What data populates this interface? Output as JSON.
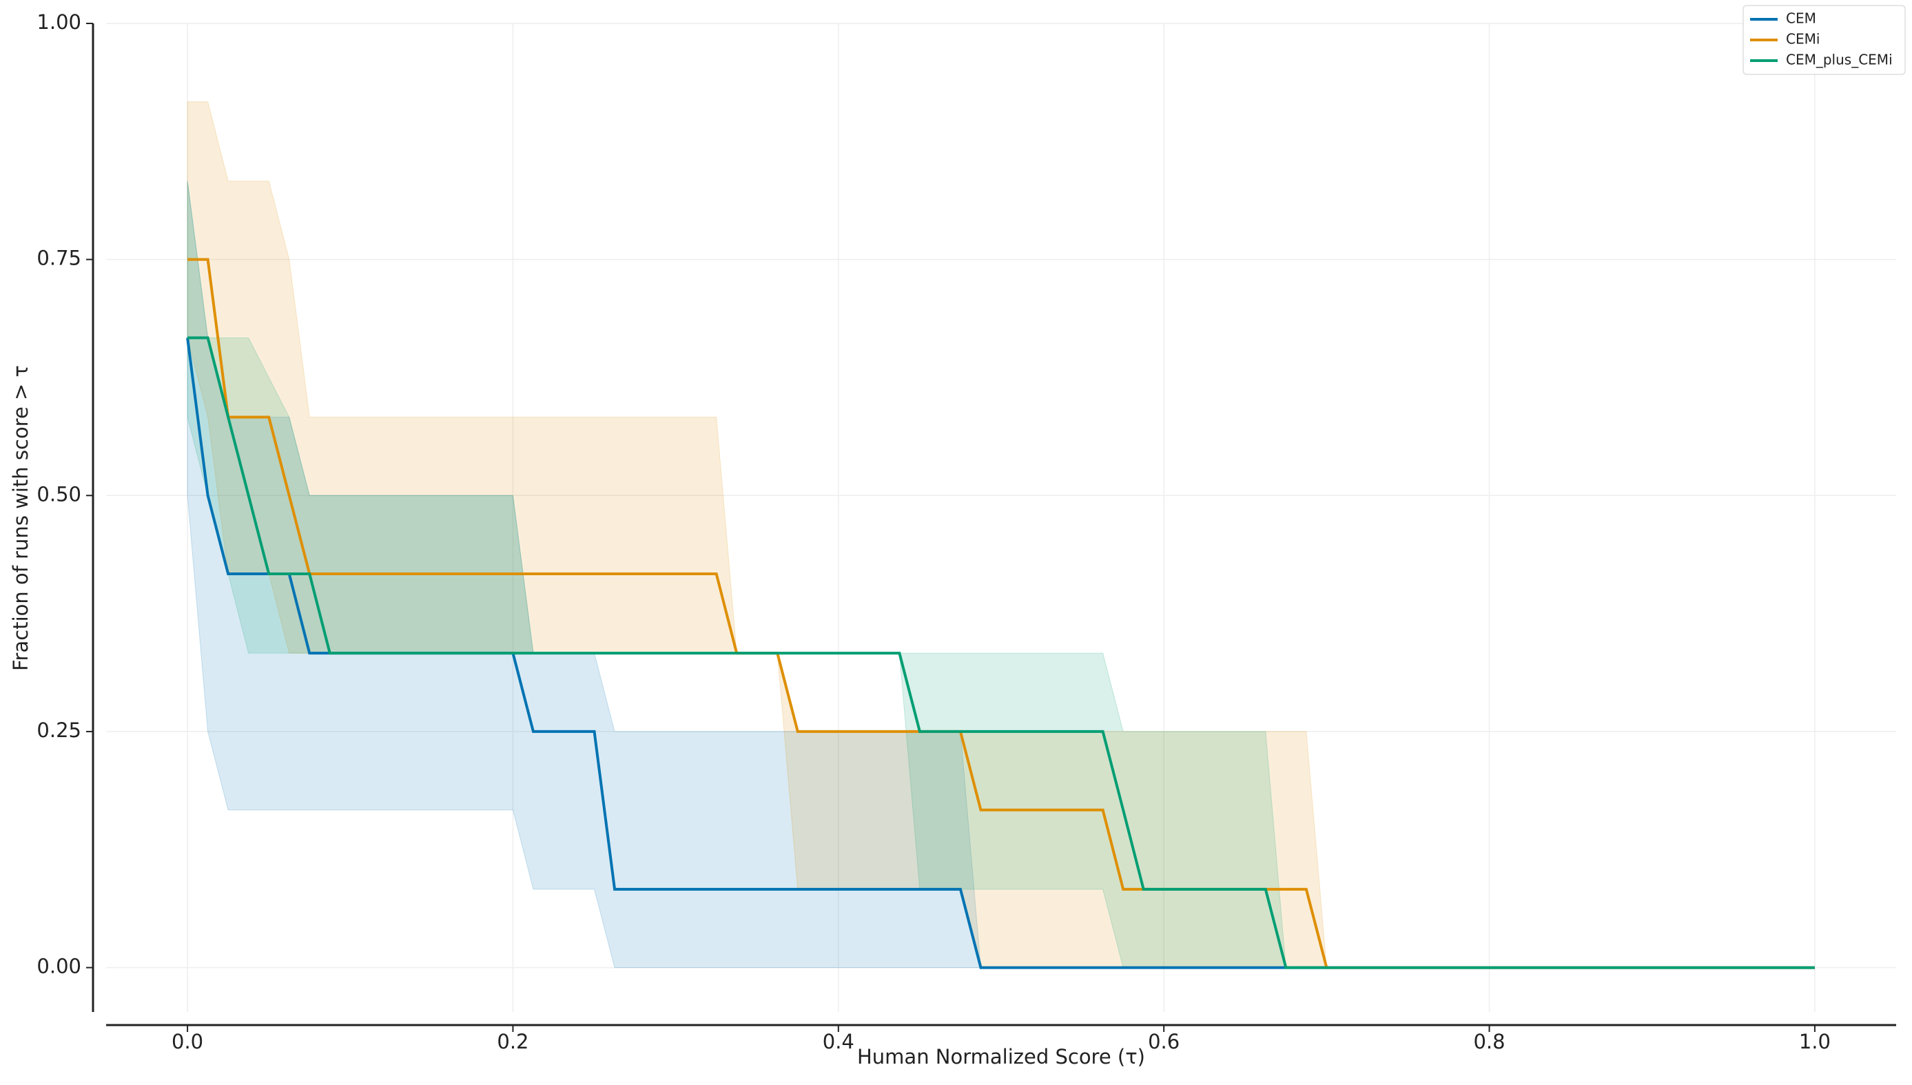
{
  "chart_data": {
    "type": "line",
    "xlabel": "Human Normalized Score (τ)",
    "ylabel": "Fraction of runs with score > τ",
    "x": [
      0,
      0.0125,
      0.025,
      0.0375,
      0.05,
      0.0625,
      0.075,
      0.0875,
      0.2,
      0.2125,
      0.25,
      0.2625,
      0.325,
      0.3375,
      0.3625,
      0.375,
      0.4375,
      0.45,
      0.475,
      0.4875,
      0.5625,
      0.575,
      0.5875,
      0.6625,
      0.675,
      0.6875,
      0.7,
      1
    ],
    "series": [
      {
        "name": "CEM",
        "color": "#0173b2",
        "values": [
          0.667,
          0.5,
          0.417,
          0.417,
          0.417,
          0.417,
          0.333,
          0.333,
          0.333,
          0.25,
          0.25,
          0.083,
          0.083,
          0.083,
          0.083,
          0.083,
          0.083,
          0.083,
          0.083,
          0,
          0,
          0,
          0,
          0,
          0,
          0,
          0,
          0
        ],
        "lower": [
          0.5,
          0.25,
          0.167,
          0.167,
          0.167,
          0.167,
          0.167,
          0.167,
          0.167,
          0.083,
          0.083,
          0,
          0,
          0,
          0,
          0,
          0,
          0,
          0,
          0,
          0,
          0,
          0,
          0,
          0,
          0,
          0,
          0
        ],
        "upper": [
          0.833,
          0.667,
          0.583,
          0.583,
          0.583,
          0.583,
          0.5,
          0.5,
          0.5,
          0.333,
          0.333,
          0.25,
          0.25,
          0.25,
          0.25,
          0.25,
          0.25,
          0.25,
          0.25,
          0,
          0,
          0,
          0,
          0,
          0,
          0,
          0,
          0
        ]
      },
      {
        "name": "CEMi",
        "color": "#de8f05",
        "values": [
          0.75,
          0.75,
          0.583,
          0.583,
          0.583,
          0.5,
          0.417,
          0.417,
          0.417,
          0.417,
          0.417,
          0.417,
          0.417,
          0.333,
          0.333,
          0.25,
          0.25,
          0.25,
          0.25,
          0.167,
          0.167,
          0.083,
          0.083,
          0.083,
          0.083,
          0.083,
          0,
          0
        ],
        "lower": [
          0.667,
          0.583,
          0.417,
          0.417,
          0.417,
          0.333,
          0.333,
          0.333,
          0.333,
          0.333,
          0.333,
          0.333,
          0.333,
          0.333,
          0.333,
          0.083,
          0.083,
          0.083,
          0.083,
          0,
          0,
          0,
          0,
          0,
          0,
          0,
          0,
          0
        ],
        "upper": [
          0.917,
          0.917,
          0.833,
          0.833,
          0.833,
          0.75,
          0.583,
          0.583,
          0.583,
          0.583,
          0.583,
          0.583,
          0.583,
          0.333,
          0.333,
          0.25,
          0.25,
          0.25,
          0.25,
          0.25,
          0.25,
          0.25,
          0.25,
          0.25,
          0.25,
          0.25,
          0,
          0
        ]
      },
      {
        "name": "CEM_plus_CEMi",
        "color": "#029e73",
        "values": [
          0.667,
          0.667,
          0.583,
          0.5,
          0.417,
          0.417,
          0.417,
          0.333,
          0.333,
          0.333,
          0.333,
          0.333,
          0.333,
          0.333,
          0.333,
          0.333,
          0.333,
          0.25,
          0.25,
          0.25,
          0.25,
          0.167,
          0.083,
          0.083,
          0,
          0,
          0,
          0
        ],
        "lower": [
          0.583,
          0.5,
          0.417,
          0.333,
          0.333,
          0.333,
          0.333,
          0.333,
          0.333,
          0.333,
          0.333,
          0.333,
          0.333,
          0.333,
          0.333,
          0.333,
          0.333,
          0.083,
          0.083,
          0.083,
          0.083,
          0,
          0,
          0,
          0,
          0,
          0,
          0
        ],
        "upper": [
          0.833,
          0.667,
          0.667,
          0.667,
          0.625,
          0.583,
          0.5,
          0.5,
          0.5,
          0.333,
          0.333,
          0.333,
          0.333,
          0.333,
          0.333,
          0.333,
          0.333,
          0.333,
          0.333,
          0.333,
          0.333,
          0.25,
          0.25,
          0.25,
          0,
          0,
          0,
          0
        ]
      }
    ],
    "xlim": [
      -0.05,
      1.05
    ],
    "ylim": [
      -0.047,
      1.0
    ],
    "xticks": [
      {
        "value": 0,
        "label": "0.0"
      },
      {
        "value": 0.2,
        "label": "0.2"
      },
      {
        "value": 0.4,
        "label": "0.4"
      },
      {
        "value": 0.6,
        "label": "0.6"
      },
      {
        "value": 0.8,
        "label": "0.8"
      },
      {
        "value": 1,
        "label": "1.0"
      }
    ],
    "yticks": [
      {
        "value": 0,
        "label": "0.00"
      },
      {
        "value": 0.25,
        "label": "0.25"
      },
      {
        "value": 0.5,
        "label": "0.50"
      },
      {
        "value": 0.75,
        "label": "0.75"
      },
      {
        "value": 1,
        "label": "1.00"
      }
    ],
    "grid": true,
    "legend": "upper right"
  }
}
